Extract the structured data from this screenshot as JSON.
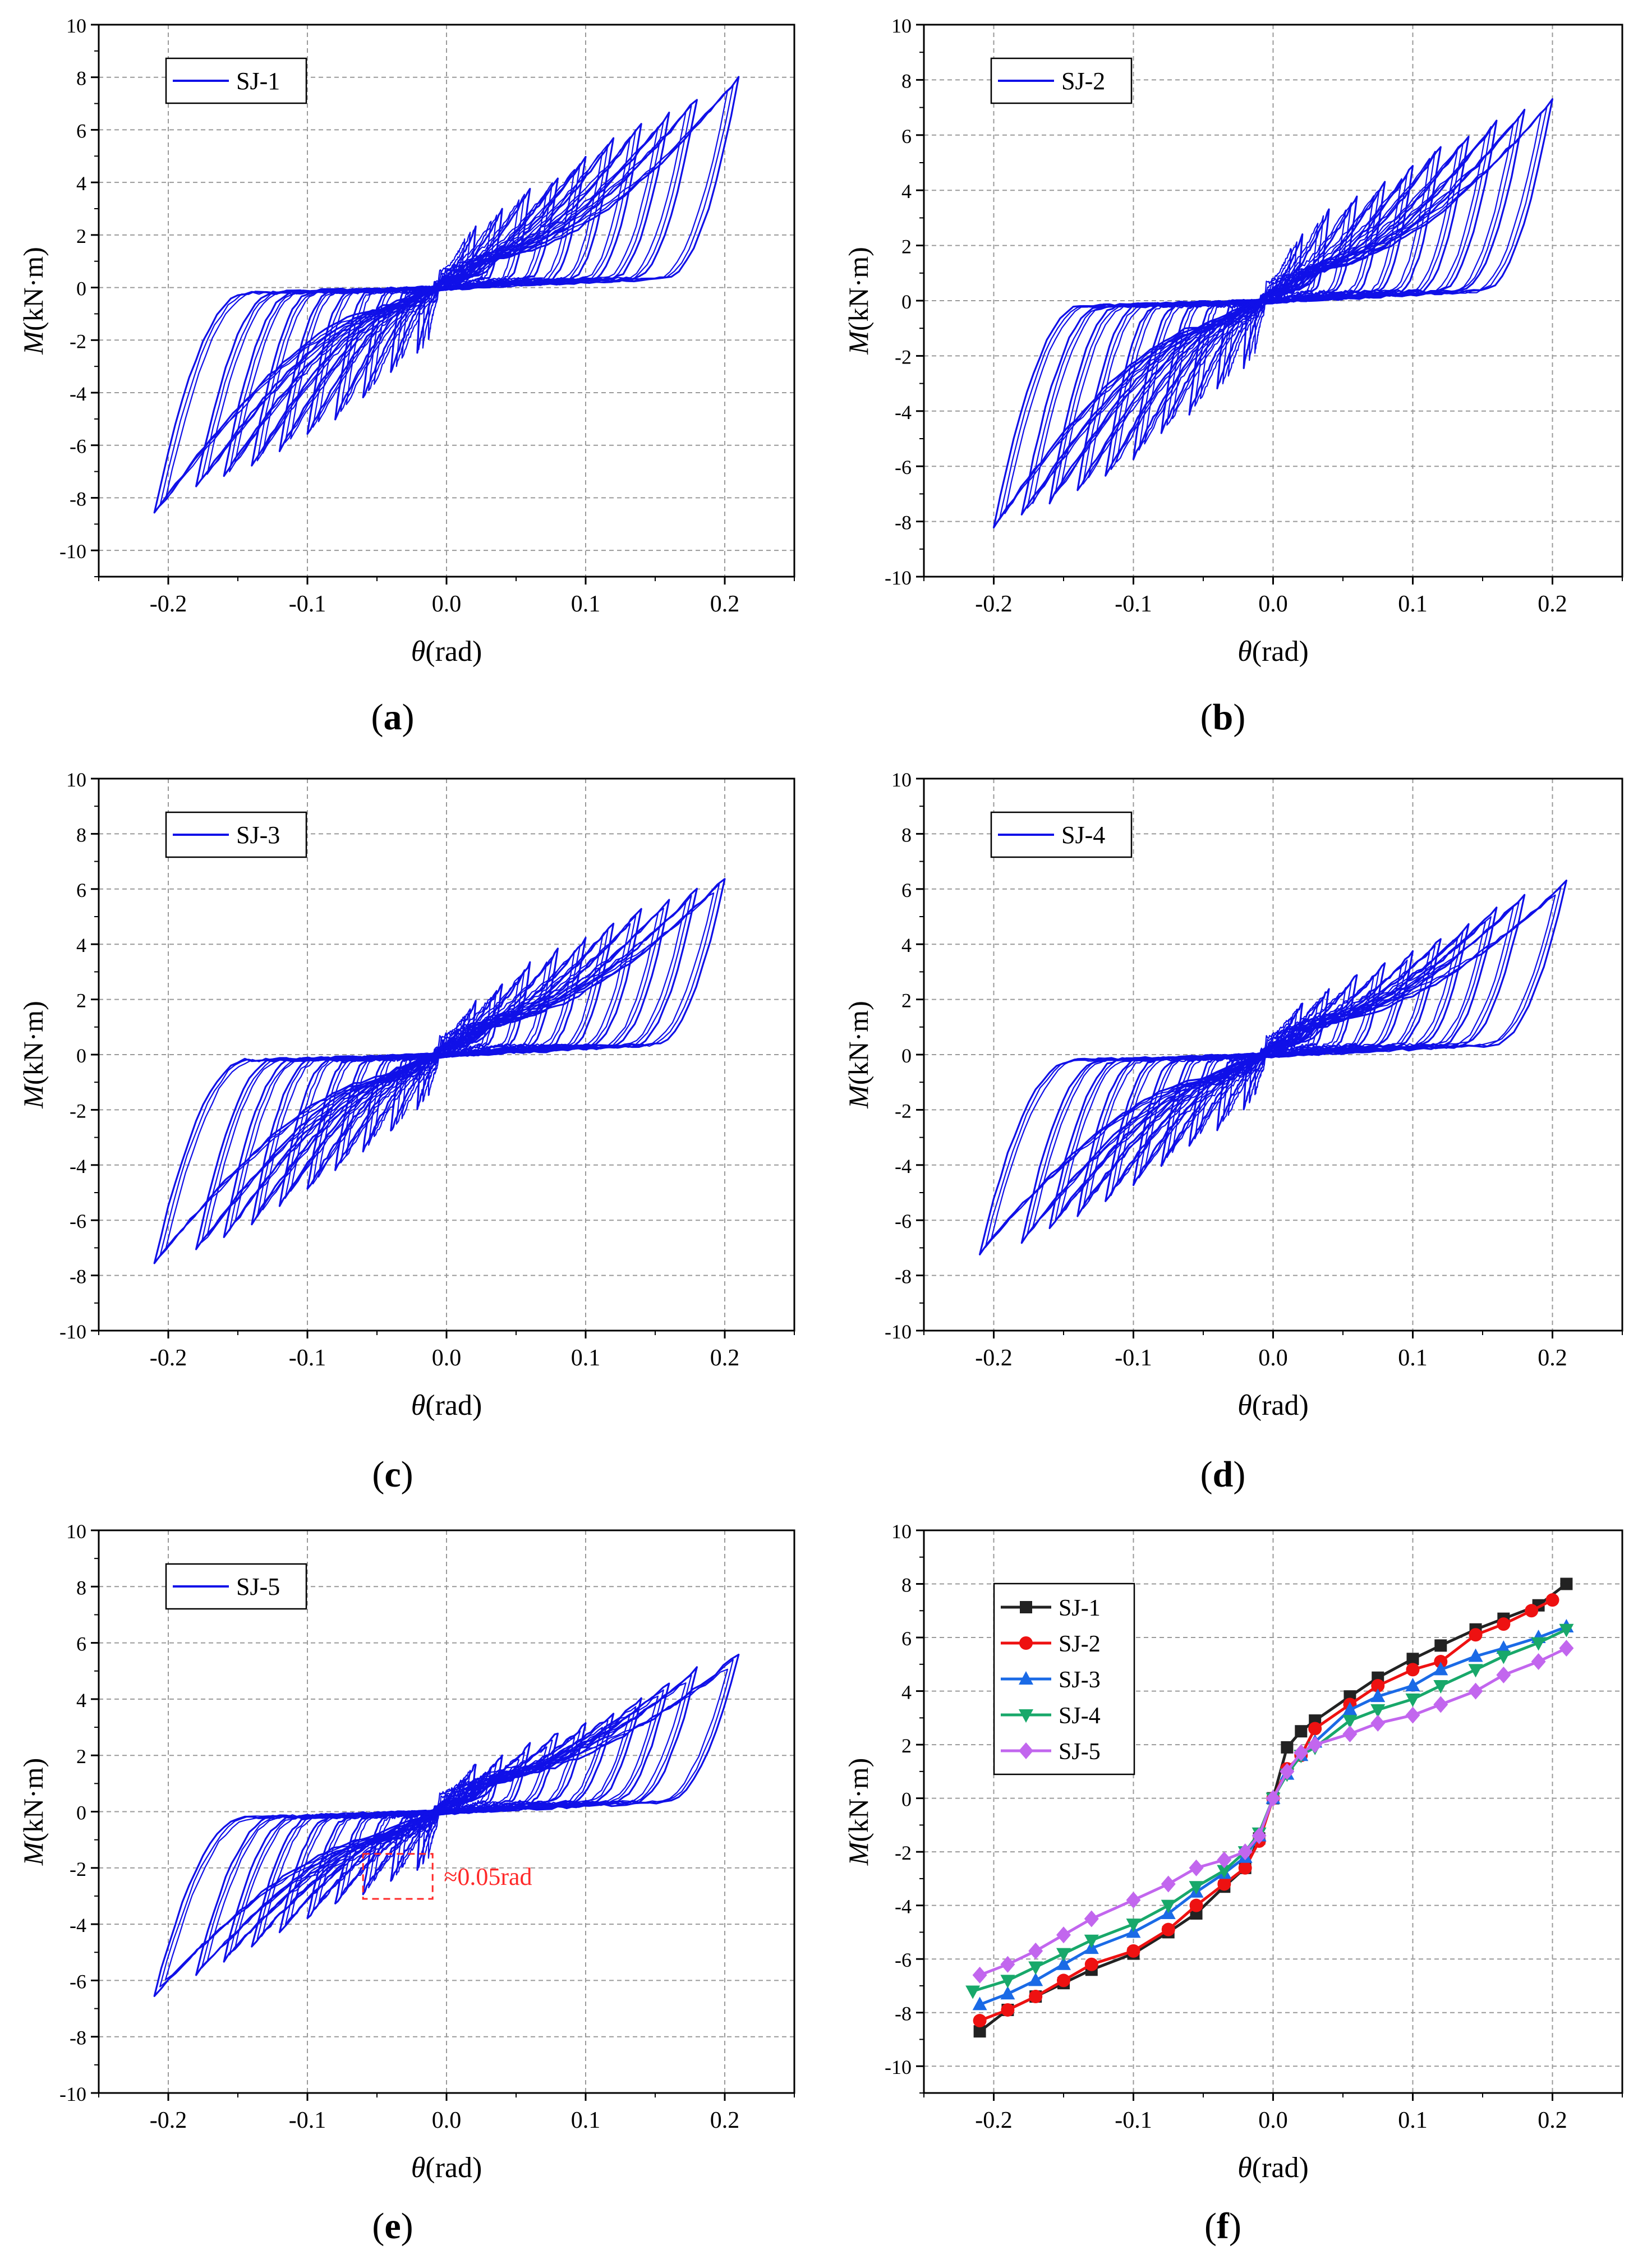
{
  "figure": {
    "y_axis_label": "(kN·m)",
    "y_axis_symbol": "M",
    "x_axis_label": "(rad)",
    "x_axis_symbol": "θ",
    "annotation_e": "≈0.05rad"
  },
  "colors": {
    "curve": "#1010e8",
    "grid": "#9a9a9a",
    "annotation": "#ff2a2a",
    "SJ-1": "#222222",
    "SJ-2": "#ee1111",
    "SJ-3": "#1a6ae6",
    "SJ-4": "#18a86a",
    "SJ-5": "#c266ee"
  },
  "chart_data": [
    {
      "panel": "(a)",
      "type": "line",
      "subtype": "hysteresis",
      "legend": [
        "SJ-1"
      ],
      "legend_position": "top-left",
      "xlabel": "θ(rad)",
      "ylabel": "M(kN·m)",
      "xlim": [
        -0.25,
        0.25
      ],
      "ylim": [
        -11,
        10
      ],
      "xticks": [
        -0.2,
        -0.1,
        0.0,
        0.1,
        0.2
      ],
      "yticks": [
        -10,
        -8,
        -6,
        -4,
        -2,
        0,
        2,
        4,
        6,
        8,
        10
      ],
      "peaks": {
        "positive": [
          [
            0.021,
            2.3
          ],
          [
            0.04,
            3.0
          ],
          [
            0.06,
            3.8
          ],
          [
            0.08,
            4.2
          ],
          [
            0.1,
            5.0
          ],
          [
            0.12,
            5.7
          ],
          [
            0.14,
            6.2
          ],
          [
            0.16,
            6.6
          ],
          [
            0.18,
            7.2
          ],
          [
            0.21,
            8.0
          ]
        ],
        "negative": [
          [
            -0.021,
            -2.5
          ],
          [
            -0.04,
            -3.2
          ],
          [
            -0.06,
            -4.2
          ],
          [
            -0.08,
            -5.0
          ],
          [
            -0.1,
            -5.6
          ],
          [
            -0.12,
            -6.2
          ],
          [
            -0.14,
            -6.8
          ],
          [
            -0.16,
            -7.2
          ],
          [
            -0.18,
            -7.6
          ],
          [
            -0.21,
            -8.6
          ]
        ]
      }
    },
    {
      "panel": "(b)",
      "type": "line",
      "subtype": "hysteresis",
      "legend": [
        "SJ-2"
      ],
      "legend_position": "top-left",
      "xlabel": "θ(rad)",
      "ylabel": "M(kN·m)",
      "xlim": [
        -0.25,
        0.25
      ],
      "ylim": [
        -10,
        10
      ],
      "xticks": [
        -0.2,
        -0.1,
        0.0,
        0.1,
        0.2
      ],
      "yticks": [
        -10,
        -8,
        -6,
        -4,
        -2,
        0,
        2,
        4,
        6,
        8,
        10
      ],
      "peaks": {
        "positive": [
          [
            0.021,
            2.4
          ],
          [
            0.04,
            3.3
          ],
          [
            0.06,
            3.8
          ],
          [
            0.08,
            4.3
          ],
          [
            0.1,
            4.9
          ],
          [
            0.12,
            5.6
          ],
          [
            0.14,
            6.0
          ],
          [
            0.16,
            6.5
          ],
          [
            0.18,
            6.9
          ],
          [
            0.2,
            7.3
          ]
        ],
        "negative": [
          [
            -0.021,
            -2.4
          ],
          [
            -0.04,
            -3.2
          ],
          [
            -0.06,
            -4.1
          ],
          [
            -0.08,
            -4.8
          ],
          [
            -0.1,
            -5.7
          ],
          [
            -0.12,
            -6.4
          ],
          [
            -0.14,
            -6.9
          ],
          [
            -0.16,
            -7.3
          ],
          [
            -0.18,
            -7.8
          ],
          [
            -0.2,
            -8.2
          ]
        ]
      }
    },
    {
      "panel": "(c)",
      "type": "line",
      "subtype": "hysteresis",
      "legend": [
        "SJ-3"
      ],
      "legend_position": "top-left",
      "xlabel": "θ(rad)",
      "ylabel": "M(kN·m)",
      "xlim": [
        -0.25,
        0.25
      ],
      "ylim": [
        -10,
        10
      ],
      "xticks": [
        -0.2,
        -0.1,
        0.0,
        0.1,
        0.2
      ],
      "yticks": [
        -10,
        -8,
        -6,
        -4,
        -2,
        0,
        2,
        4,
        6,
        8,
        10
      ],
      "peaks": {
        "positive": [
          [
            0.021,
            1.9
          ],
          [
            0.04,
            2.6
          ],
          [
            0.06,
            3.3
          ],
          [
            0.08,
            3.8
          ],
          [
            0.1,
            4.2
          ],
          [
            0.12,
            4.8
          ],
          [
            0.14,
            5.3
          ],
          [
            0.16,
            5.6
          ],
          [
            0.18,
            6.0
          ],
          [
            0.2,
            6.4
          ]
        ],
        "negative": [
          [
            -0.021,
            -2.0
          ],
          [
            -0.04,
            -2.8
          ],
          [
            -0.06,
            -3.5
          ],
          [
            -0.08,
            -4.2
          ],
          [
            -0.1,
            -4.9
          ],
          [
            -0.12,
            -5.5
          ],
          [
            -0.14,
            -6.1
          ],
          [
            -0.16,
            -6.6
          ],
          [
            -0.18,
            -7.1
          ],
          [
            -0.21,
            -7.6
          ]
        ]
      }
    },
    {
      "panel": "(d)",
      "type": "line",
      "subtype": "hysteresis",
      "legend": [
        "SJ-4"
      ],
      "legend_position": "top-left",
      "xlabel": "θ(rad)",
      "ylabel": "M(kN·m)",
      "xlim": [
        -0.25,
        0.25
      ],
      "ylim": [
        -10,
        10
      ],
      "xticks": [
        -0.2,
        -0.1,
        0.0,
        0.1,
        0.2
      ],
      "yticks": [
        -10,
        -8,
        -6,
        -4,
        -2,
        0,
        2,
        4,
        6,
        8,
        10
      ],
      "peaks": {
        "positive": [
          [
            0.021,
            1.9
          ],
          [
            0.04,
            2.4
          ],
          [
            0.06,
            2.9
          ],
          [
            0.08,
            3.3
          ],
          [
            0.1,
            3.7
          ],
          [
            0.12,
            4.2
          ],
          [
            0.14,
            4.7
          ],
          [
            0.16,
            5.3
          ],
          [
            0.18,
            5.8
          ],
          [
            0.21,
            6.3
          ]
        ],
        "negative": [
          [
            -0.021,
            -2.0
          ],
          [
            -0.04,
            -2.7
          ],
          [
            -0.06,
            -3.3
          ],
          [
            -0.08,
            -4.0
          ],
          [
            -0.1,
            -4.7
          ],
          [
            -0.12,
            -5.3
          ],
          [
            -0.14,
            -5.8
          ],
          [
            -0.16,
            -6.3
          ],
          [
            -0.18,
            -6.8
          ],
          [
            -0.21,
            -7.2
          ]
        ]
      }
    },
    {
      "panel": "(e)",
      "type": "line",
      "subtype": "hysteresis",
      "legend": [
        "SJ-5"
      ],
      "legend_position": "top-left",
      "xlabel": "θ(rad)",
      "ylabel": "M(kN·m)",
      "xlim": [
        -0.25,
        0.25
      ],
      "ylim": [
        -10,
        10
      ],
      "xticks": [
        -0.2,
        -0.1,
        0.0,
        0.1,
        0.2
      ],
      "yticks": [
        -10,
        -8,
        -6,
        -4,
        -2,
        0,
        2,
        4,
        6,
        8,
        10
      ],
      "annotation": {
        "text": "≈0.05rad",
        "box_x": [
          -0.06,
          -0.01
        ],
        "box_y": [
          -3.1,
          -1.5
        ]
      },
      "peaks": {
        "positive": [
          [
            0.021,
            1.7
          ],
          [
            0.04,
            2.0
          ],
          [
            0.06,
            2.4
          ],
          [
            0.08,
            2.8
          ],
          [
            0.1,
            3.1
          ],
          [
            0.12,
            3.5
          ],
          [
            0.14,
            4.0
          ],
          [
            0.16,
            4.6
          ],
          [
            0.18,
            5.1
          ],
          [
            0.21,
            5.6
          ]
        ],
        "negative": [
          [
            -0.021,
            -2.1
          ],
          [
            -0.04,
            -2.5
          ],
          [
            -0.06,
            -2.9
          ],
          [
            -0.08,
            -3.3
          ],
          [
            -0.1,
            -3.8
          ],
          [
            -0.12,
            -4.3
          ],
          [
            -0.14,
            -4.8
          ],
          [
            -0.16,
            -5.3
          ],
          [
            -0.18,
            -5.8
          ],
          [
            -0.21,
            -6.5
          ]
        ]
      }
    },
    {
      "panel": "(f)",
      "type": "line",
      "subtype": "skeleton",
      "legend_position": "top-left",
      "xlabel": "θ(rad)",
      "ylabel": "M(kN·m)",
      "xlim": [
        -0.25,
        0.25
      ],
      "ylim": [
        -11,
        10
      ],
      "xticks": [
        -0.2,
        -0.1,
        0.0,
        0.1,
        0.2
      ],
      "yticks": [
        -10,
        -8,
        -6,
        -4,
        -2,
        0,
        2,
        4,
        6,
        8,
        10
      ],
      "series": [
        {
          "name": "SJ-1",
          "marker": "square",
          "x": [
            -0.21,
            -0.19,
            -0.17,
            -0.15,
            -0.13,
            -0.1,
            -0.075,
            -0.055,
            -0.035,
            -0.02,
            -0.01,
            0,
            0.01,
            0.02,
            0.03,
            0.055,
            0.075,
            0.1,
            0.12,
            0.145,
            0.165,
            0.19,
            0.21
          ],
          "y": [
            -8.7,
            -7.9,
            -7.4,
            -6.9,
            -6.4,
            -5.8,
            -5.0,
            -4.3,
            -3.3,
            -2.6,
            -1.5,
            0,
            1.9,
            2.5,
            2.9,
            3.8,
            4.5,
            5.2,
            5.7,
            6.3,
            6.7,
            7.2,
            8.0
          ]
        },
        {
          "name": "SJ-2",
          "marker": "circle",
          "x": [
            -0.21,
            -0.19,
            -0.17,
            -0.15,
            -0.13,
            -0.1,
            -0.075,
            -0.055,
            -0.035,
            -0.02,
            -0.01,
            0,
            0.01,
            0.02,
            0.03,
            0.055,
            0.075,
            0.1,
            0.12,
            0.145,
            0.165,
            0.185,
            0.2
          ],
          "y": [
            -8.3,
            -7.9,
            -7.4,
            -6.8,
            -6.2,
            -5.7,
            -4.9,
            -4.0,
            -3.2,
            -2.6,
            -1.6,
            0,
            1.1,
            1.6,
            2.6,
            3.5,
            4.2,
            4.8,
            5.1,
            6.1,
            6.5,
            7.0,
            7.4
          ]
        },
        {
          "name": "SJ-3",
          "marker": "triangle-up",
          "x": [
            -0.21,
            -0.19,
            -0.17,
            -0.15,
            -0.13,
            -0.1,
            -0.075,
            -0.055,
            -0.035,
            -0.02,
            -0.01,
            0,
            0.01,
            0.02,
            0.03,
            0.055,
            0.075,
            0.1,
            0.12,
            0.145,
            0.165,
            0.19,
            0.21
          ],
          "y": [
            -7.7,
            -7.3,
            -6.8,
            -6.2,
            -5.6,
            -5.0,
            -4.3,
            -3.5,
            -2.8,
            -2.2,
            -1.4,
            0,
            0.9,
            1.6,
            2.1,
            3.3,
            3.8,
            4.2,
            4.8,
            5.3,
            5.6,
            6.0,
            6.4
          ]
        },
        {
          "name": "SJ-4",
          "marker": "triangle-down",
          "x": [
            -0.215,
            -0.19,
            -0.17,
            -0.15,
            -0.13,
            -0.1,
            -0.075,
            -0.055,
            -0.035,
            -0.02,
            -0.01,
            0,
            0.01,
            0.02,
            0.03,
            0.055,
            0.075,
            0.1,
            0.12,
            0.145,
            0.165,
            0.19,
            0.21
          ],
          "y": [
            -7.2,
            -6.8,
            -6.3,
            -5.8,
            -5.3,
            -4.7,
            -4.0,
            -3.3,
            -2.7,
            -2.0,
            -1.3,
            0,
            0.9,
            1.6,
            1.9,
            2.9,
            3.3,
            3.7,
            4.2,
            4.8,
            5.3,
            5.8,
            6.3
          ]
        },
        {
          "name": "SJ-5",
          "marker": "diamond",
          "x": [
            -0.21,
            -0.19,
            -0.17,
            -0.15,
            -0.13,
            -0.1,
            -0.075,
            -0.055,
            -0.035,
            -0.02,
            -0.01,
            0,
            0.01,
            0.02,
            0.03,
            0.055,
            0.075,
            0.1,
            0.12,
            0.145,
            0.165,
            0.19,
            0.21
          ],
          "y": [
            -6.6,
            -6.2,
            -5.7,
            -5.1,
            -4.5,
            -3.8,
            -3.2,
            -2.6,
            -2.3,
            -2.0,
            -1.4,
            0,
            1.0,
            1.7,
            2.0,
            2.4,
            2.8,
            3.1,
            3.5,
            4.0,
            4.6,
            5.1,
            5.6
          ]
        }
      ]
    }
  ]
}
